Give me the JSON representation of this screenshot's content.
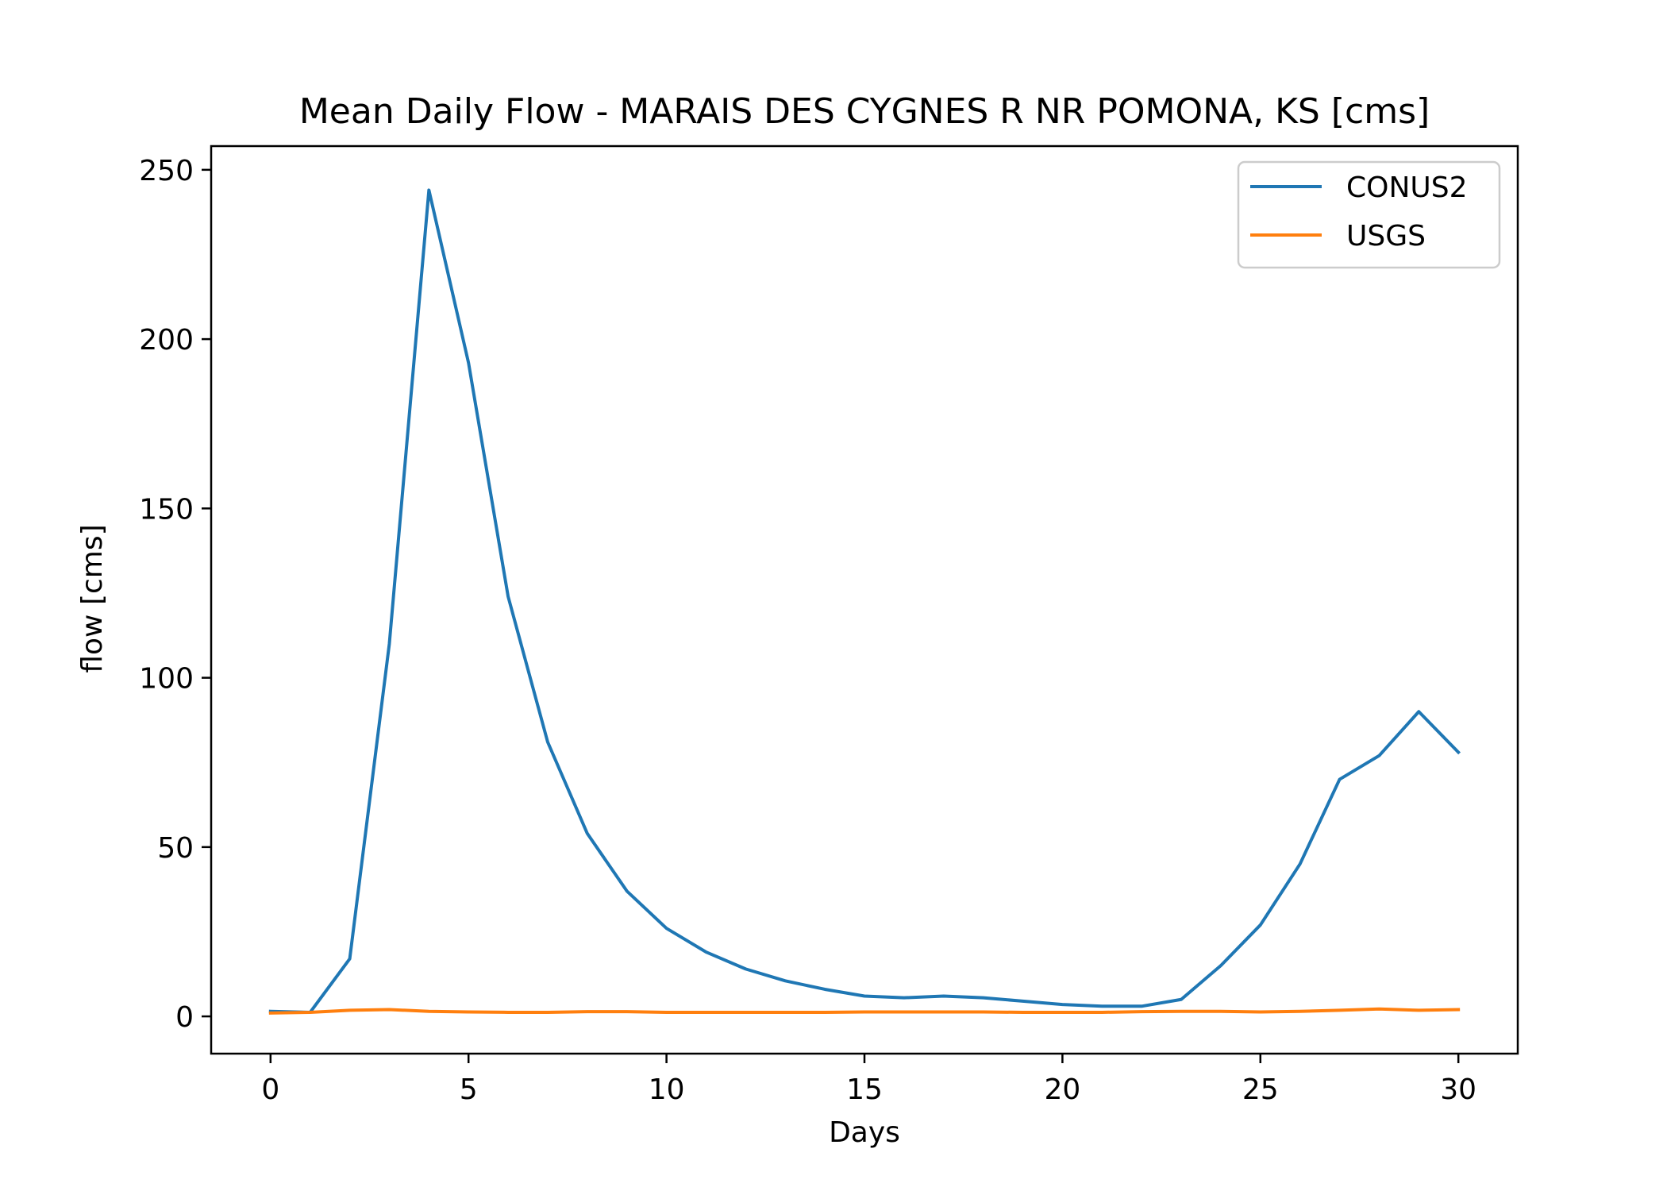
{
  "chart_data": {
    "type": "line",
    "title": "Mean Daily Flow - MARAIS DES CYGNES R NR POMONA, KS [cms]",
    "xlabel": "Days",
    "ylabel": "flow [cms]",
    "xlim": [
      -1.5,
      31.5
    ],
    "ylim": [
      -11,
      257
    ],
    "x_ticks": [
      0,
      5,
      10,
      15,
      20,
      25,
      30
    ],
    "y_ticks": [
      0,
      50,
      100,
      150,
      200,
      250
    ],
    "grid": false,
    "legend_position": "upper right",
    "x": [
      0,
      1,
      2,
      3,
      4,
      5,
      6,
      7,
      8,
      9,
      10,
      11,
      12,
      13,
      14,
      15,
      16,
      17,
      18,
      19,
      20,
      21,
      22,
      23,
      24,
      25,
      26,
      27,
      28,
      29,
      30
    ],
    "series": [
      {
        "name": "CONUS2",
        "color": "#1f77b4",
        "values": [
          1.5,
          1.2,
          17,
          110,
          244,
          193,
          124,
          81,
          54,
          37,
          26,
          19,
          14,
          10.5,
          8,
          6,
          5.5,
          6,
          5.5,
          4.5,
          3.5,
          3,
          3,
          5,
          15,
          27,
          45,
          70,
          77,
          90,
          78
        ]
      },
      {
        "name": "USGS",
        "color": "#ff7f0e",
        "values": [
          1,
          1.2,
          1.8,
          2,
          1.5,
          1.3,
          1.2,
          1.2,
          1.4,
          1.4,
          1.2,
          1.2,
          1.2,
          1.2,
          1.2,
          1.3,
          1.3,
          1.3,
          1.3,
          1.2,
          1.2,
          1.2,
          1.4,
          1.5,
          1.5,
          1.3,
          1.5,
          1.8,
          2.2,
          1.8,
          2
        ]
      }
    ]
  }
}
